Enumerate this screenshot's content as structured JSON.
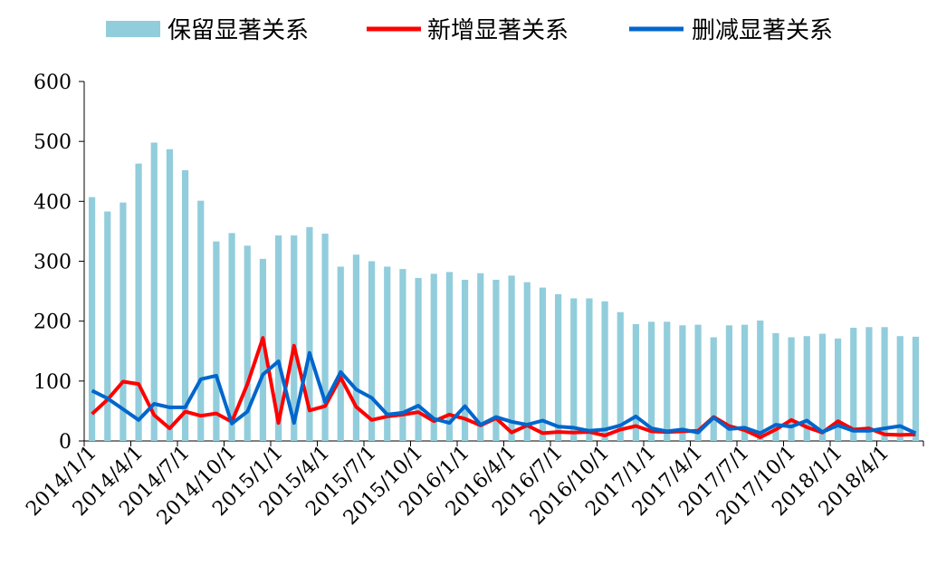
{
  "chart_data": {
    "type": "bar",
    "title": "",
    "xlabel": "",
    "ylabel": "",
    "ylim": [
      0,
      600
    ],
    "yticks": [
      0,
      100,
      200,
      300,
      400,
      500,
      600
    ],
    "grid": false,
    "legend_position": "top",
    "x_tick_labels": [
      "2014/1/1",
      "2014/4/1",
      "2014/7/1",
      "2014/10/1",
      "2015/1/1",
      "2015/4/1",
      "2015/7/1",
      "2015/10/1",
      "2016/1/1",
      "2016/4/1",
      "2016/7/1",
      "2016/10/1",
      "2017/1/1",
      "2017/4/1",
      "2017/7/1",
      "2017/10/1",
      "2018/1/1",
      "2018/4/1"
    ],
    "x_tick_every": 3,
    "categories": [
      "2014/1",
      "2014/2",
      "2014/3",
      "2014/4",
      "2014/5",
      "2014/6",
      "2014/7",
      "2014/8",
      "2014/9",
      "2014/10",
      "2014/11",
      "2014/12",
      "2015/1",
      "2015/2",
      "2015/3",
      "2015/4",
      "2015/5",
      "2015/6",
      "2015/7",
      "2015/8",
      "2015/9",
      "2015/10",
      "2015/11",
      "2015/12",
      "2016/1",
      "2016/2",
      "2016/3",
      "2016/4",
      "2016/5",
      "2016/6",
      "2016/7",
      "2016/8",
      "2016/9",
      "2016/10",
      "2016/11",
      "2016/12",
      "2017/1",
      "2017/2",
      "2017/3",
      "2017/4",
      "2017/5",
      "2017/6",
      "2017/7",
      "2017/8",
      "2017/9",
      "2017/10",
      "2017/11",
      "2017/12",
      "2018/1",
      "2018/2",
      "2018/3",
      "2018/4",
      "2018/5",
      "2018/6"
    ],
    "series": [
      {
        "name": "保留显著关系",
        "kind": "bar",
        "color": "#92CDDC",
        "values": [
          407,
          383,
          398,
          463,
          498,
          487,
          452,
          401,
          333,
          347,
          326,
          304,
          343,
          343,
          357,
          346,
          291,
          311,
          300,
          291,
          287,
          272,
          279,
          282,
          269,
          280,
          269,
          276,
          265,
          256,
          245,
          238,
          238,
          233,
          215,
          195,
          199,
          199,
          193,
          194,
          173,
          193,
          194,
          201,
          180,
          173,
          175,
          179,
          171,
          189,
          190,
          190,
          175,
          174
        ]
      },
      {
        "name": "新增显著关系",
        "kind": "line",
        "color": "#FF0000",
        "values": [
          45,
          69,
          99,
          95,
          43,
          21,
          49,
          42,
          46,
          32,
          95,
          172,
          30,
          159,
          51,
          58,
          106,
          57,
          35,
          41,
          44,
          48,
          33,
          44,
          37,
          26,
          38,
          14,
          26,
          13,
          15,
          14,
          15,
          9,
          19,
          25,
          16,
          15,
          16,
          17,
          40,
          25,
          18,
          6,
          19,
          35,
          23,
          14,
          33,
          19,
          21,
          11,
          10,
          11
        ]
      },
      {
        "name": "删减显著关系",
        "kind": "line",
        "color": "#0066CC",
        "values": [
          84,
          71,
          53,
          35,
          62,
          56,
          56,
          103,
          109,
          29,
          49,
          111,
          133,
          30,
          147,
          65,
          115,
          86,
          72,
          44,
          47,
          59,
          37,
          30,
          58,
          27,
          40,
          32,
          27,
          34,
          24,
          22,
          17,
          19,
          26,
          41,
          21,
          16,
          19,
          14,
          39,
          20,
          22,
          13,
          27,
          24,
          34,
          15,
          26,
          17,
          17,
          21,
          25,
          13
        ]
      }
    ]
  }
}
